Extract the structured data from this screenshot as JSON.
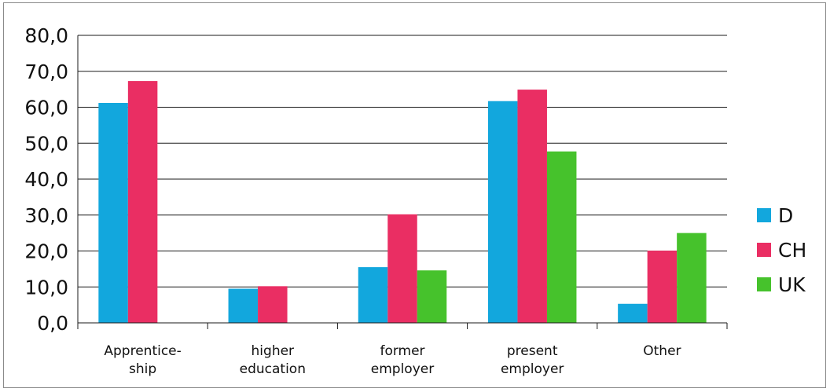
{
  "chart_data": {
    "type": "bar",
    "categories": [
      [
        "Apprentice-",
        "ship"
      ],
      [
        "higher",
        "education"
      ],
      [
        "former",
        "employer"
      ],
      [
        "present",
        "employer"
      ],
      [
        "Other"
      ]
    ],
    "series": [
      {
        "name": "D",
        "color": "#12a7dd",
        "values": [
          61.2,
          9.5,
          15.5,
          61.7,
          5.3
        ]
      },
      {
        "name": "CH",
        "color": "#ea2e63",
        "values": [
          67.3,
          10.2,
          30.2,
          64.9,
          20.1
        ]
      },
      {
        "name": "UK",
        "color": "#46c22c",
        "values": [
          null,
          null,
          14.6,
          47.7,
          25.0
        ]
      }
    ],
    "yticks": [
      "0,0",
      "10,0",
      "20,0",
      "30,0",
      "40,0",
      "50,0",
      "60,0",
      "70,0",
      "80,0"
    ],
    "ylim": [
      0,
      80
    ],
    "grid": true,
    "legend_position": "right"
  }
}
